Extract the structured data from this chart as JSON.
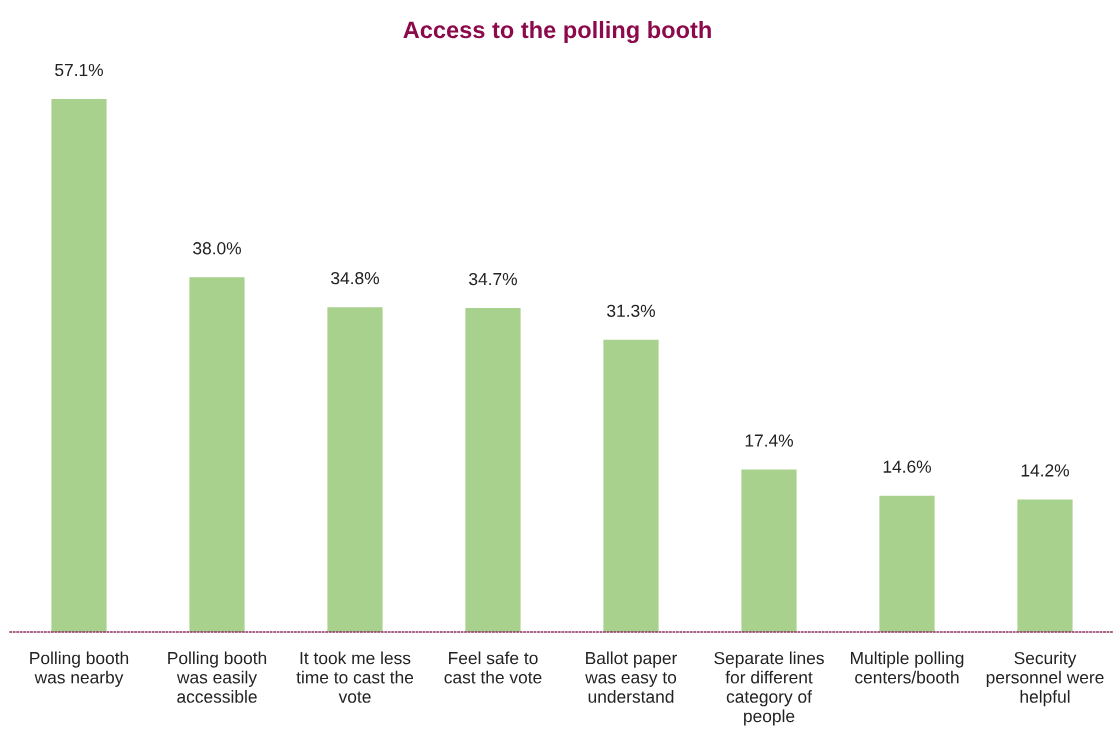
{
  "chart_data": {
    "type": "bar",
    "title": "Access to the polling booth",
    "categories": [
      "Polling booth\nwas nearby",
      "Polling booth\nwas easily\naccessible",
      "It took me less\ntime to cast the\nvote",
      "Feel safe to\ncast the vote",
      "Ballot paper\nwas easy to\nunderstand",
      "Separate lines\nfor different\ncategory of\npeople",
      "Multiple polling\ncenters/booth",
      "Security\npersonnel were\nhelpful"
    ],
    "values": [
      57.1,
      38.0,
      34.8,
      34.7,
      31.3,
      17.4,
      14.6,
      14.2
    ],
    "value_labels": [
      "57.1%",
      "38.0%",
      "34.8%",
      "34.7%",
      "31.3%",
      "17.4%",
      "14.6%",
      "14.2%"
    ],
    "color": "#a9d18e",
    "grid": false,
    "legend": false
  }
}
